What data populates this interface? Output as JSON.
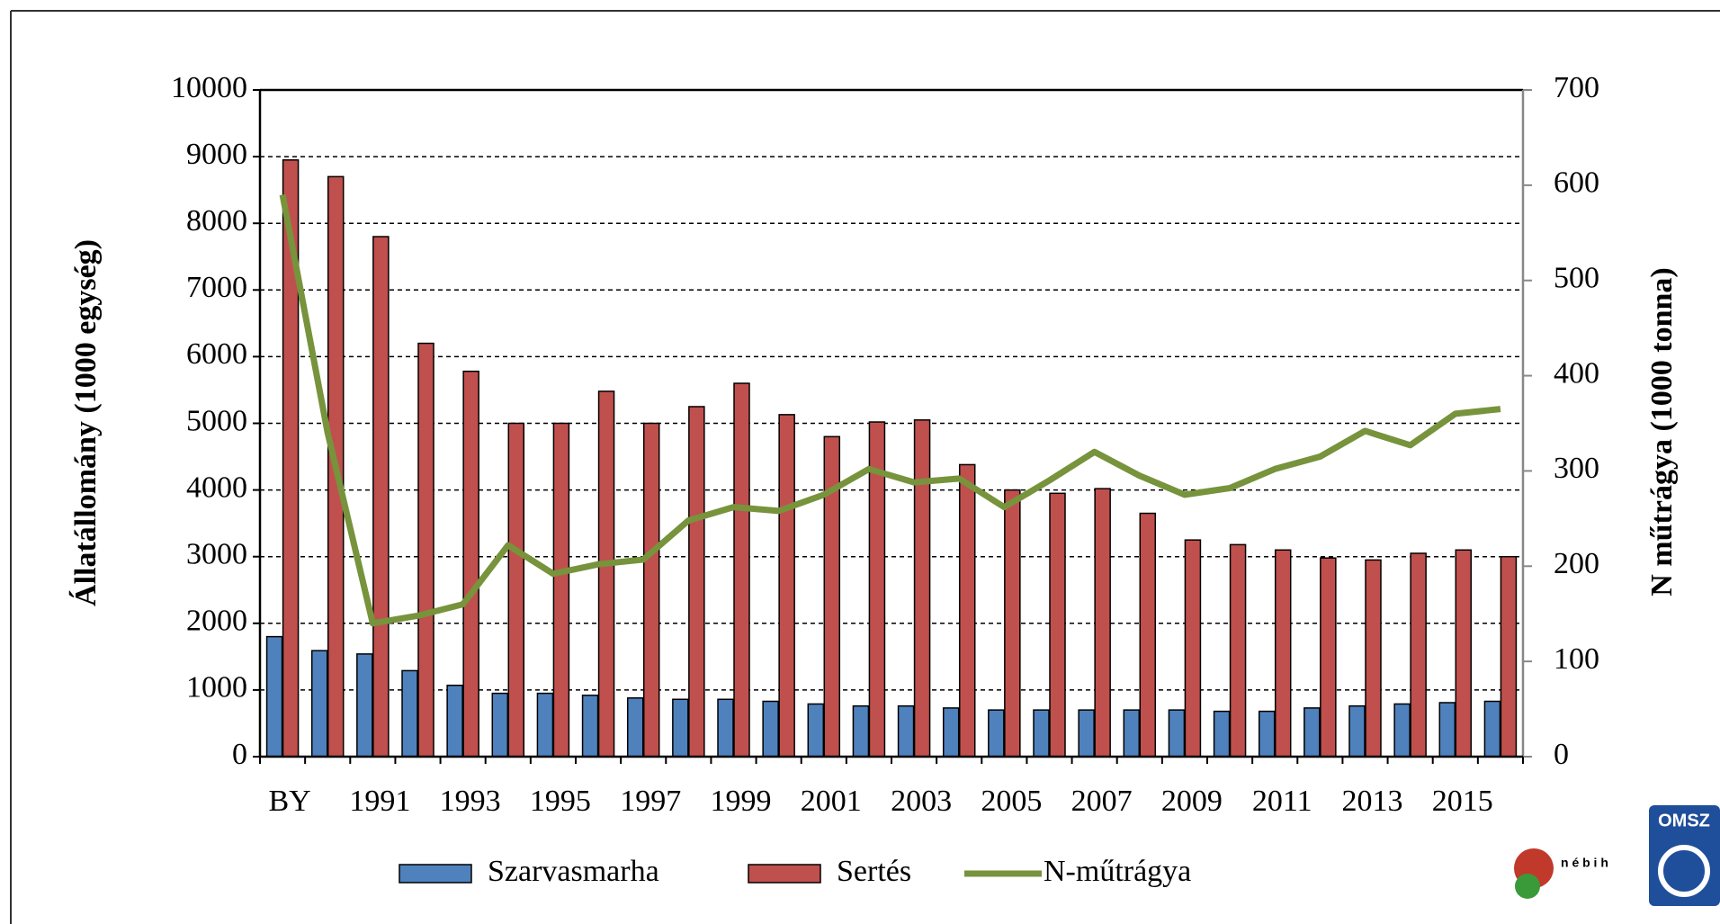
{
  "chart_data": {
    "type": "bar_line",
    "y_label": "Állatállomány (1000 egység)",
    "y2_label": "N műtrágya (1000 tonna)",
    "categories": [
      "BY",
      null,
      "1991",
      null,
      "1993",
      null,
      "1995",
      null,
      "1997",
      null,
      "1999",
      null,
      "2001",
      null,
      "2003",
      null,
      "2005",
      null,
      "2007",
      null,
      "2009",
      null,
      "2011",
      null,
      "2013",
      null,
      "2015",
      null
    ],
    "series": [
      {
        "name": "Szarvasmarha",
        "color": "#4f81bd",
        "type": "bar",
        "values": [
          1800,
          1590,
          1540,
          1290,
          1070,
          950,
          950,
          920,
          880,
          860,
          860,
          830,
          790,
          760,
          760,
          730,
          700,
          700,
          700,
          700,
          700,
          680,
          680,
          730,
          760,
          790,
          810,
          830
        ]
      },
      {
        "name": "Sertés",
        "color": "#c0504d",
        "type": "bar",
        "values": [
          8950,
          8700,
          7800,
          6200,
          5780,
          5000,
          5000,
          5480,
          5000,
          5250,
          5600,
          5130,
          4800,
          5020,
          5050,
          4380,
          4000,
          3950,
          4020,
          3650,
          3250,
          3180,
          3100,
          2980,
          2950,
          3050,
          3100,
          3000
        ]
      },
      {
        "name": "N-műtrágya",
        "color": "#77933c",
        "type": "line",
        "axis": "y2",
        "values": [
          590,
          340,
          140,
          148,
          160,
          222,
          192,
          202,
          207,
          248,
          262,
          258,
          275,
          302,
          288,
          292,
          262,
          290,
          320,
          295,
          275,
          282,
          302,
          315,
          342,
          327,
          360,
          365
        ]
      }
    ],
    "ylim": [
      0,
      10000
    ],
    "yticks": [
      0,
      1000,
      2000,
      3000,
      4000,
      5000,
      6000,
      7000,
      8000,
      9000,
      10000
    ],
    "y2lim": [
      0,
      700
    ],
    "y2ticks": [
      0,
      100,
      200,
      300,
      400,
      500,
      600,
      700
    ],
    "grid": true,
    "legend": "bottom"
  },
  "logos": {
    "nebih": "n é b i h",
    "omsz": "OMSZ"
  }
}
